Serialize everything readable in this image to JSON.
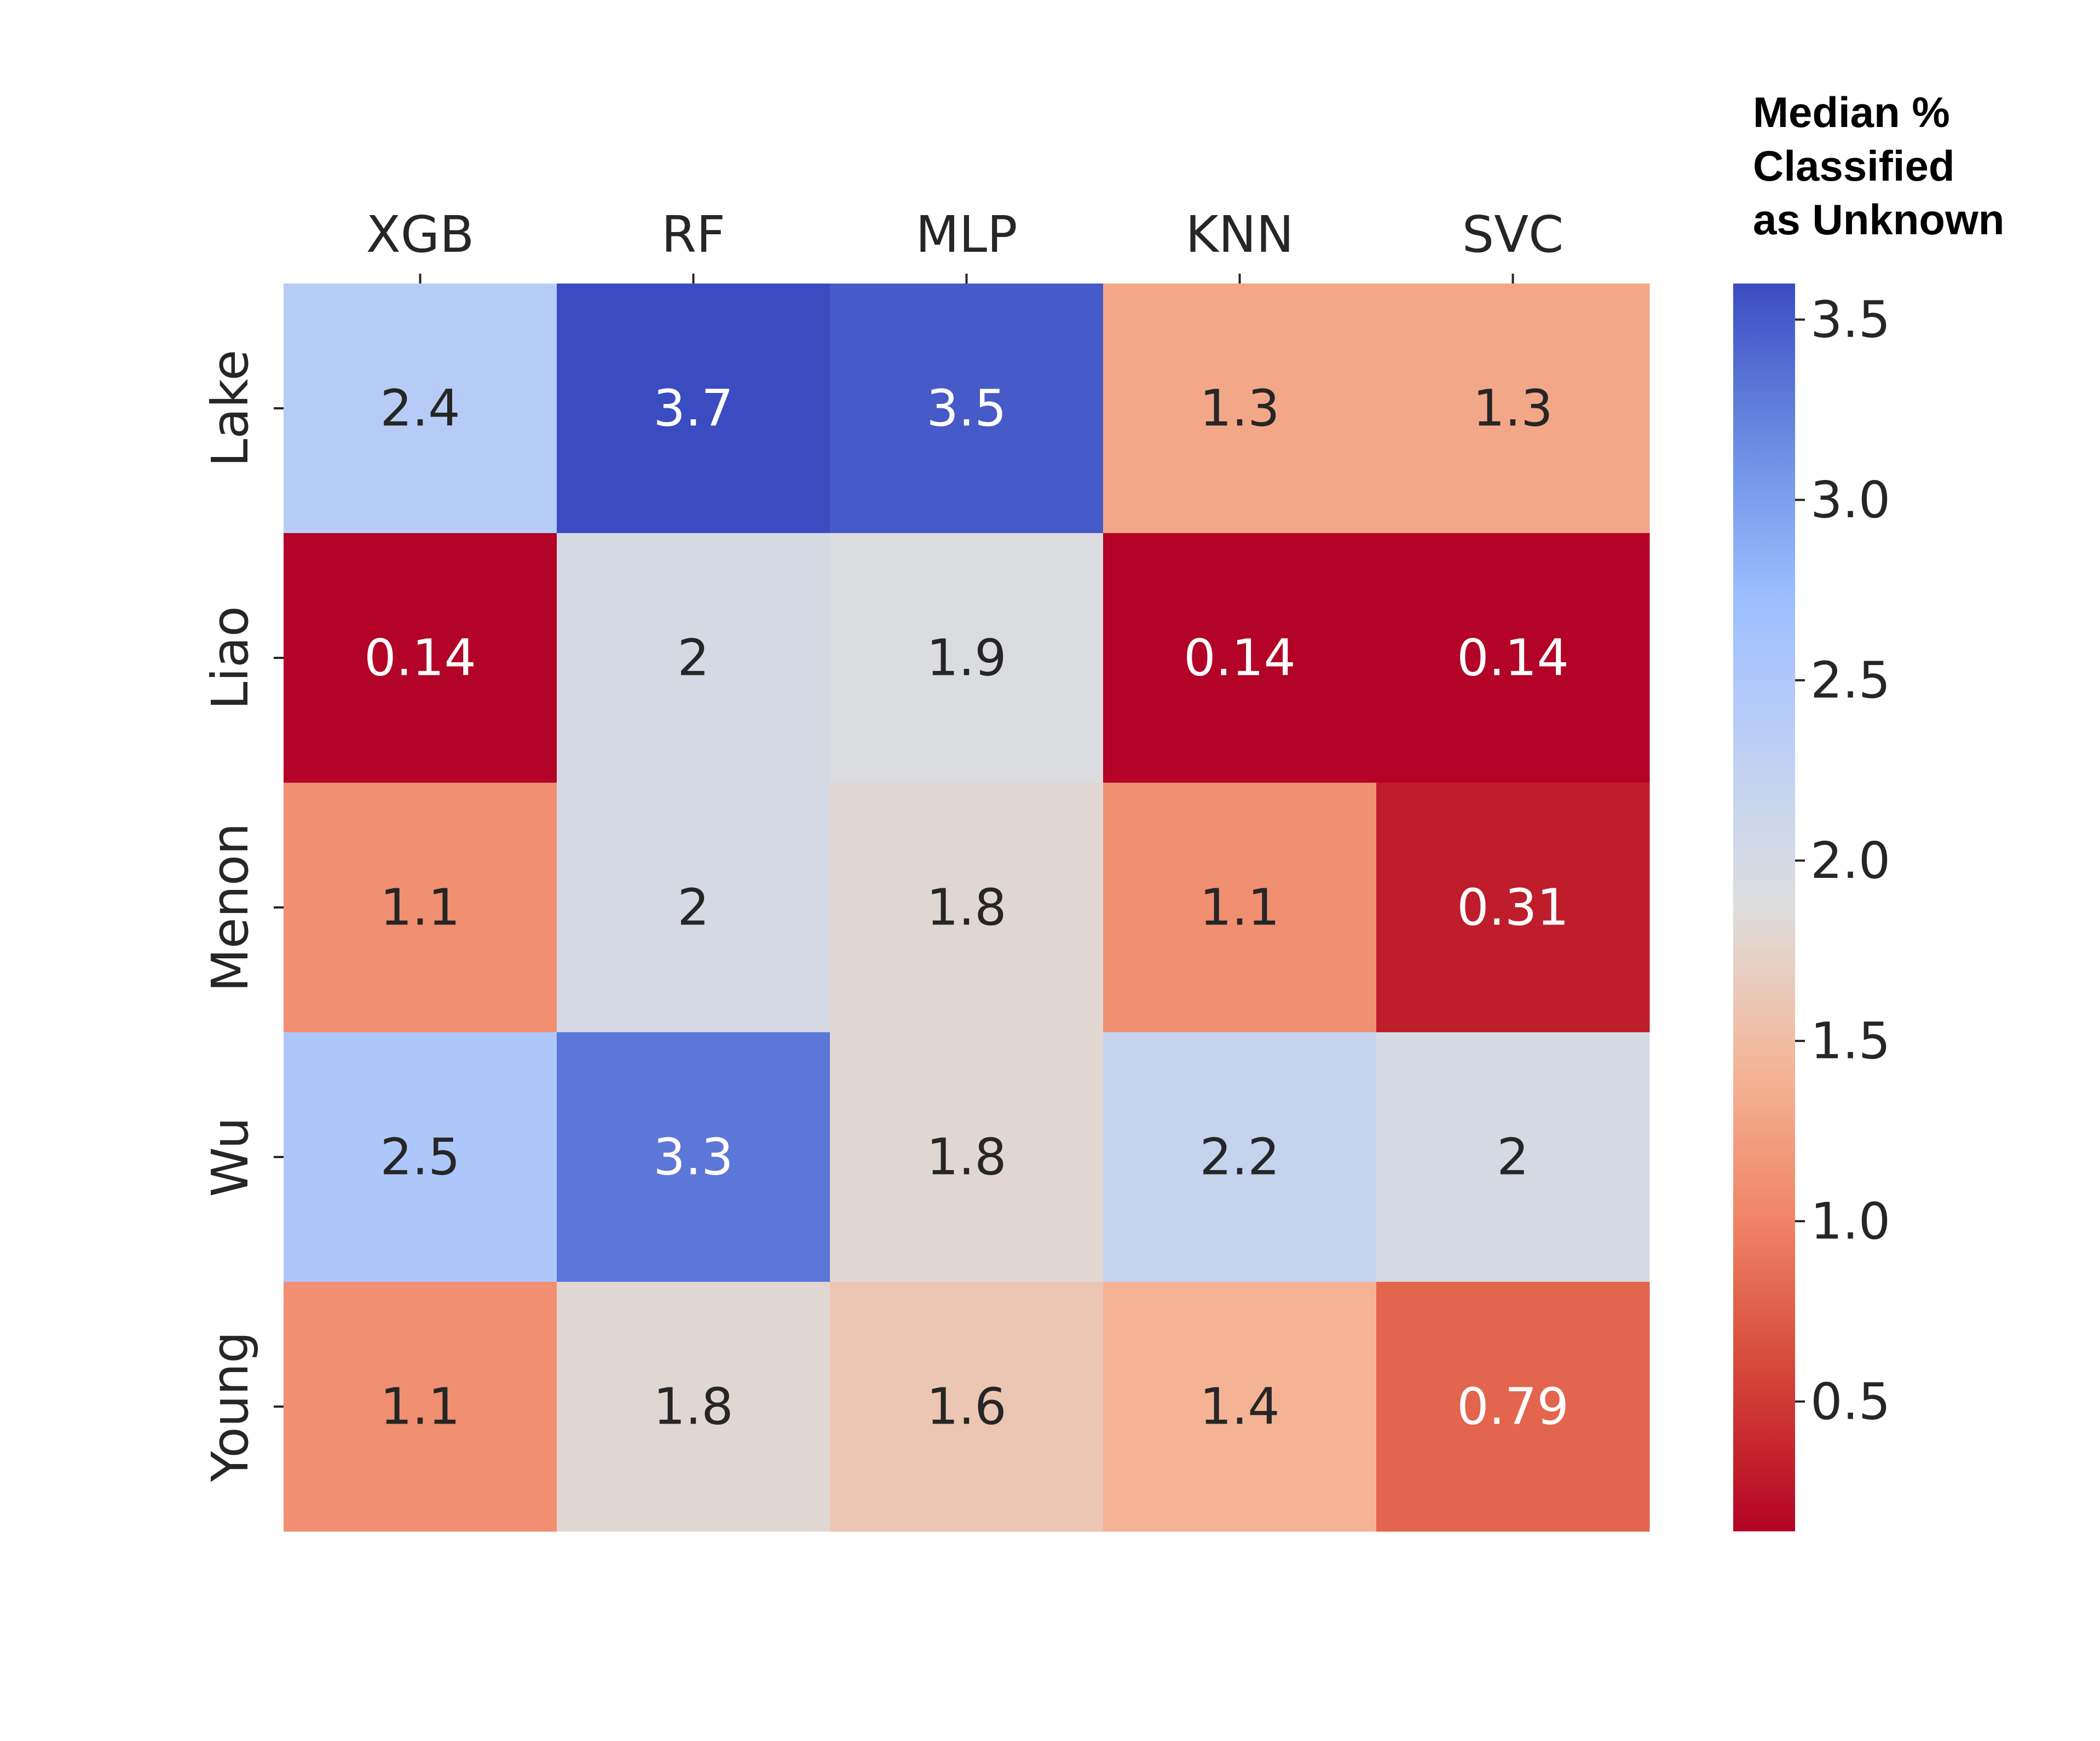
{
  "chart_data": {
    "type": "heatmap",
    "columns": [
      "XGB",
      "RF",
      "MLP",
      "KNN",
      "SVC"
    ],
    "rows": [
      "Lake",
      "Liao",
      "Menon",
      "Wu",
      "Young"
    ],
    "values": [
      [
        2.4,
        3.7,
        3.5,
        1.3,
        1.3
      ],
      [
        0.14,
        2.0,
        1.9,
        0.14,
        0.14
      ],
      [
        1.1,
        2.0,
        1.8,
        1.1,
        0.31
      ],
      [
        2.5,
        3.3,
        1.8,
        2.2,
        2.0
      ],
      [
        1.1,
        1.8,
        1.6,
        1.4,
        0.79
      ]
    ],
    "annotations": [
      [
        "2.4",
        "3.7",
        "3.5",
        "1.3",
        "1.3"
      ],
      [
        "0.14",
        "2",
        "1.9",
        "0.14",
        "0.14"
      ],
      [
        "1.1",
        "2",
        "1.8",
        "1.1",
        "0.31"
      ],
      [
        "2.5",
        "3.3",
        "1.8",
        "2.2",
        "2"
      ],
      [
        "1.1",
        "1.8",
        "1.6",
        "1.4",
        "0.79"
      ]
    ],
    "colormap": "coolwarm_r",
    "vmin": 0.14,
    "vmax": 3.6,
    "colorbar": {
      "title_lines": [
        "Median %",
        "Classified",
        "as Unknown"
      ],
      "ticks": [
        0.5,
        1.0,
        1.5,
        2.0,
        2.5,
        3.0,
        3.5
      ],
      "tick_labels": [
        "0.5",
        "1.0",
        "1.5",
        "2.0",
        "2.5",
        "3.0",
        "3.5"
      ]
    },
    "x_axis_position": "top",
    "grid": false
  }
}
